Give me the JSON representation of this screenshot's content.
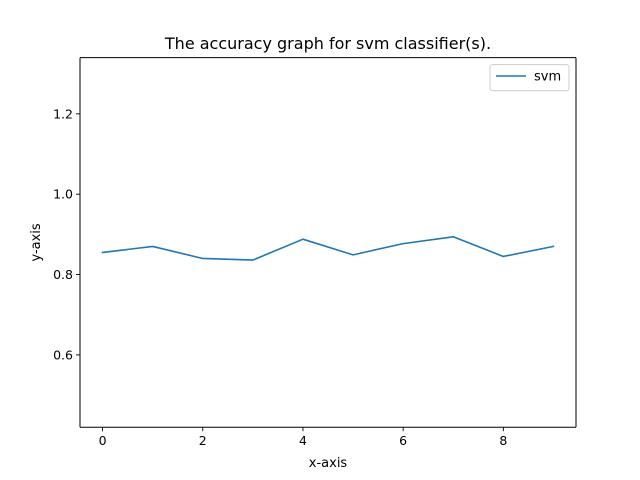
{
  "chart_data": {
    "type": "line",
    "title": "The accuracy graph for svm classifier(s).",
    "xlabel": "x-axis",
    "ylabel": "y-axis",
    "xlim": [
      -0.45,
      9.45
    ],
    "ylim": [
      0.42,
      1.34
    ],
    "xticks": [
      0,
      2,
      4,
      6,
      8
    ],
    "xtick_labels": [
      "0",
      "2",
      "4",
      "6",
      "8"
    ],
    "yticks": [
      0.6,
      0.8,
      1.0,
      1.2
    ],
    "ytick_labels": [
      "0.6",
      "0.8",
      "1.0",
      "1.2"
    ],
    "grid": false,
    "legend_position": "top-right",
    "series": [
      {
        "name": "svm",
        "color": "#1f77b4",
        "x": [
          0,
          1,
          2,
          3,
          4,
          5,
          6,
          7,
          8,
          9
        ],
        "y": [
          0.855,
          0.87,
          0.84,
          0.836,
          0.888,
          0.849,
          0.877,
          0.894,
          0.845,
          0.87
        ]
      }
    ]
  }
}
